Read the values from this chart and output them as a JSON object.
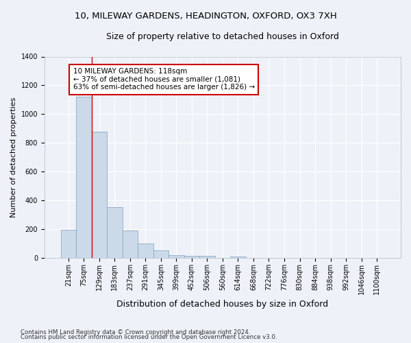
{
  "title1": "10, MILEWAY GARDENS, HEADINGTON, OXFORD, OX3 7XH",
  "title2": "Size of property relative to detached houses in Oxford",
  "xlabel": "Distribution of detached houses by size in Oxford",
  "ylabel": "Number of detached properties",
  "categories": [
    "21sqm",
    "75sqm",
    "129sqm",
    "183sqm",
    "237sqm",
    "291sqm",
    "345sqm",
    "399sqm",
    "452sqm",
    "506sqm",
    "560sqm",
    "614sqm",
    "668sqm",
    "722sqm",
    "776sqm",
    "830sqm",
    "884sqm",
    "938sqm",
    "992sqm",
    "1046sqm",
    "1100sqm"
  ],
  "values": [
    195,
    1120,
    875,
    350,
    190,
    100,
    50,
    20,
    15,
    15,
    0,
    10,
    0,
    0,
    0,
    0,
    0,
    0,
    0,
    0,
    0
  ],
  "bar_color": "#ccd9e8",
  "bar_edge_color": "#8aaac8",
  "bar_linewidth": 0.6,
  "vline_x_index": 1.5,
  "vline_color": "#cc0000",
  "annotation_text": "10 MILEWAY GARDENS: 118sqm\n← 37% of detached houses are smaller (1,081)\n63% of semi-detached houses are larger (1,826) →",
  "annotation_box_color": "white",
  "annotation_box_edge": "#cc0000",
  "ylim": [
    0,
    1400
  ],
  "yticks": [
    0,
    200,
    400,
    600,
    800,
    1000,
    1200,
    1400
  ],
  "footnote1": "Contains HM Land Registry data © Crown copyright and database right 2024.",
  "footnote2": "Contains public sector information licensed under the Open Government Licence v3.0.",
  "bg_color": "#eef2f8",
  "grid_color": "white",
  "title1_fontsize": 9.5,
  "title2_fontsize": 9,
  "annot_fontsize": 7.5,
  "ylabel_fontsize": 8,
  "xlabel_fontsize": 9,
  "tick_fontsize": 7
}
